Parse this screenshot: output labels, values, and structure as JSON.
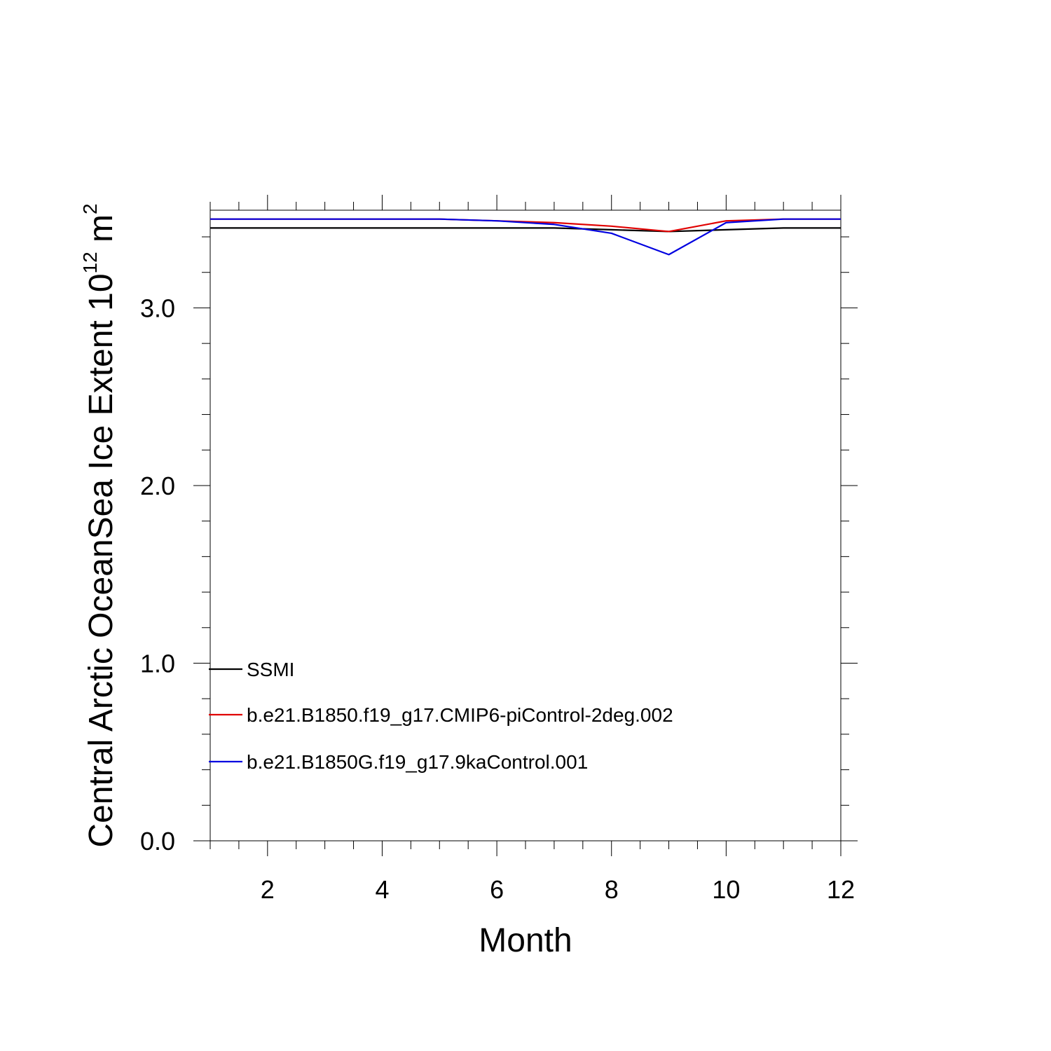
{
  "chart_data": {
    "type": "line",
    "xlabel": "Month",
    "ylabel_main": "Central Arctic OceanSea Ice Extent 10",
    "ylabel_sup": "12",
    "ylabel_unit": " m",
    "ylabel_unit_sup": "2",
    "xlim": [
      1,
      12
    ],
    "ylim": [
      0,
      3.55
    ],
    "x_major_ticks": [
      2,
      4,
      6,
      8,
      10,
      12
    ],
    "x_minor_step": 0.5,
    "y_major_ticks": [
      0.0,
      1.0,
      2.0,
      3.0
    ],
    "y_tick_labels": [
      "0.0",
      "1.0",
      "2.0",
      "3.0"
    ],
    "y_minor_step": 0.2,
    "grid": false,
    "legend_position": "bottom-left",
    "x": [
      1,
      2,
      3,
      4,
      5,
      6,
      7,
      8,
      9,
      10,
      11,
      12
    ],
    "series": [
      {
        "name": "SSMI",
        "color": "#000000",
        "values": [
          3.45,
          3.45,
          3.45,
          3.45,
          3.45,
          3.45,
          3.45,
          3.44,
          3.43,
          3.44,
          3.45,
          3.45
        ]
      },
      {
        "name": "b.e21.B1850.f19_g17.CMIP6-piControl-2deg.002",
        "color": "#e00000",
        "values": [
          3.5,
          3.5,
          3.5,
          3.5,
          3.5,
          3.49,
          3.48,
          3.46,
          3.43,
          3.49,
          3.5,
          3.5
        ]
      },
      {
        "name": "b.e21.B1850G.f19_g17.9kaControl.001",
        "color": "#0000e0",
        "values": [
          3.5,
          3.5,
          3.5,
          3.5,
          3.5,
          3.49,
          3.47,
          3.42,
          3.3,
          3.48,
          3.5,
          3.5
        ]
      }
    ]
  }
}
